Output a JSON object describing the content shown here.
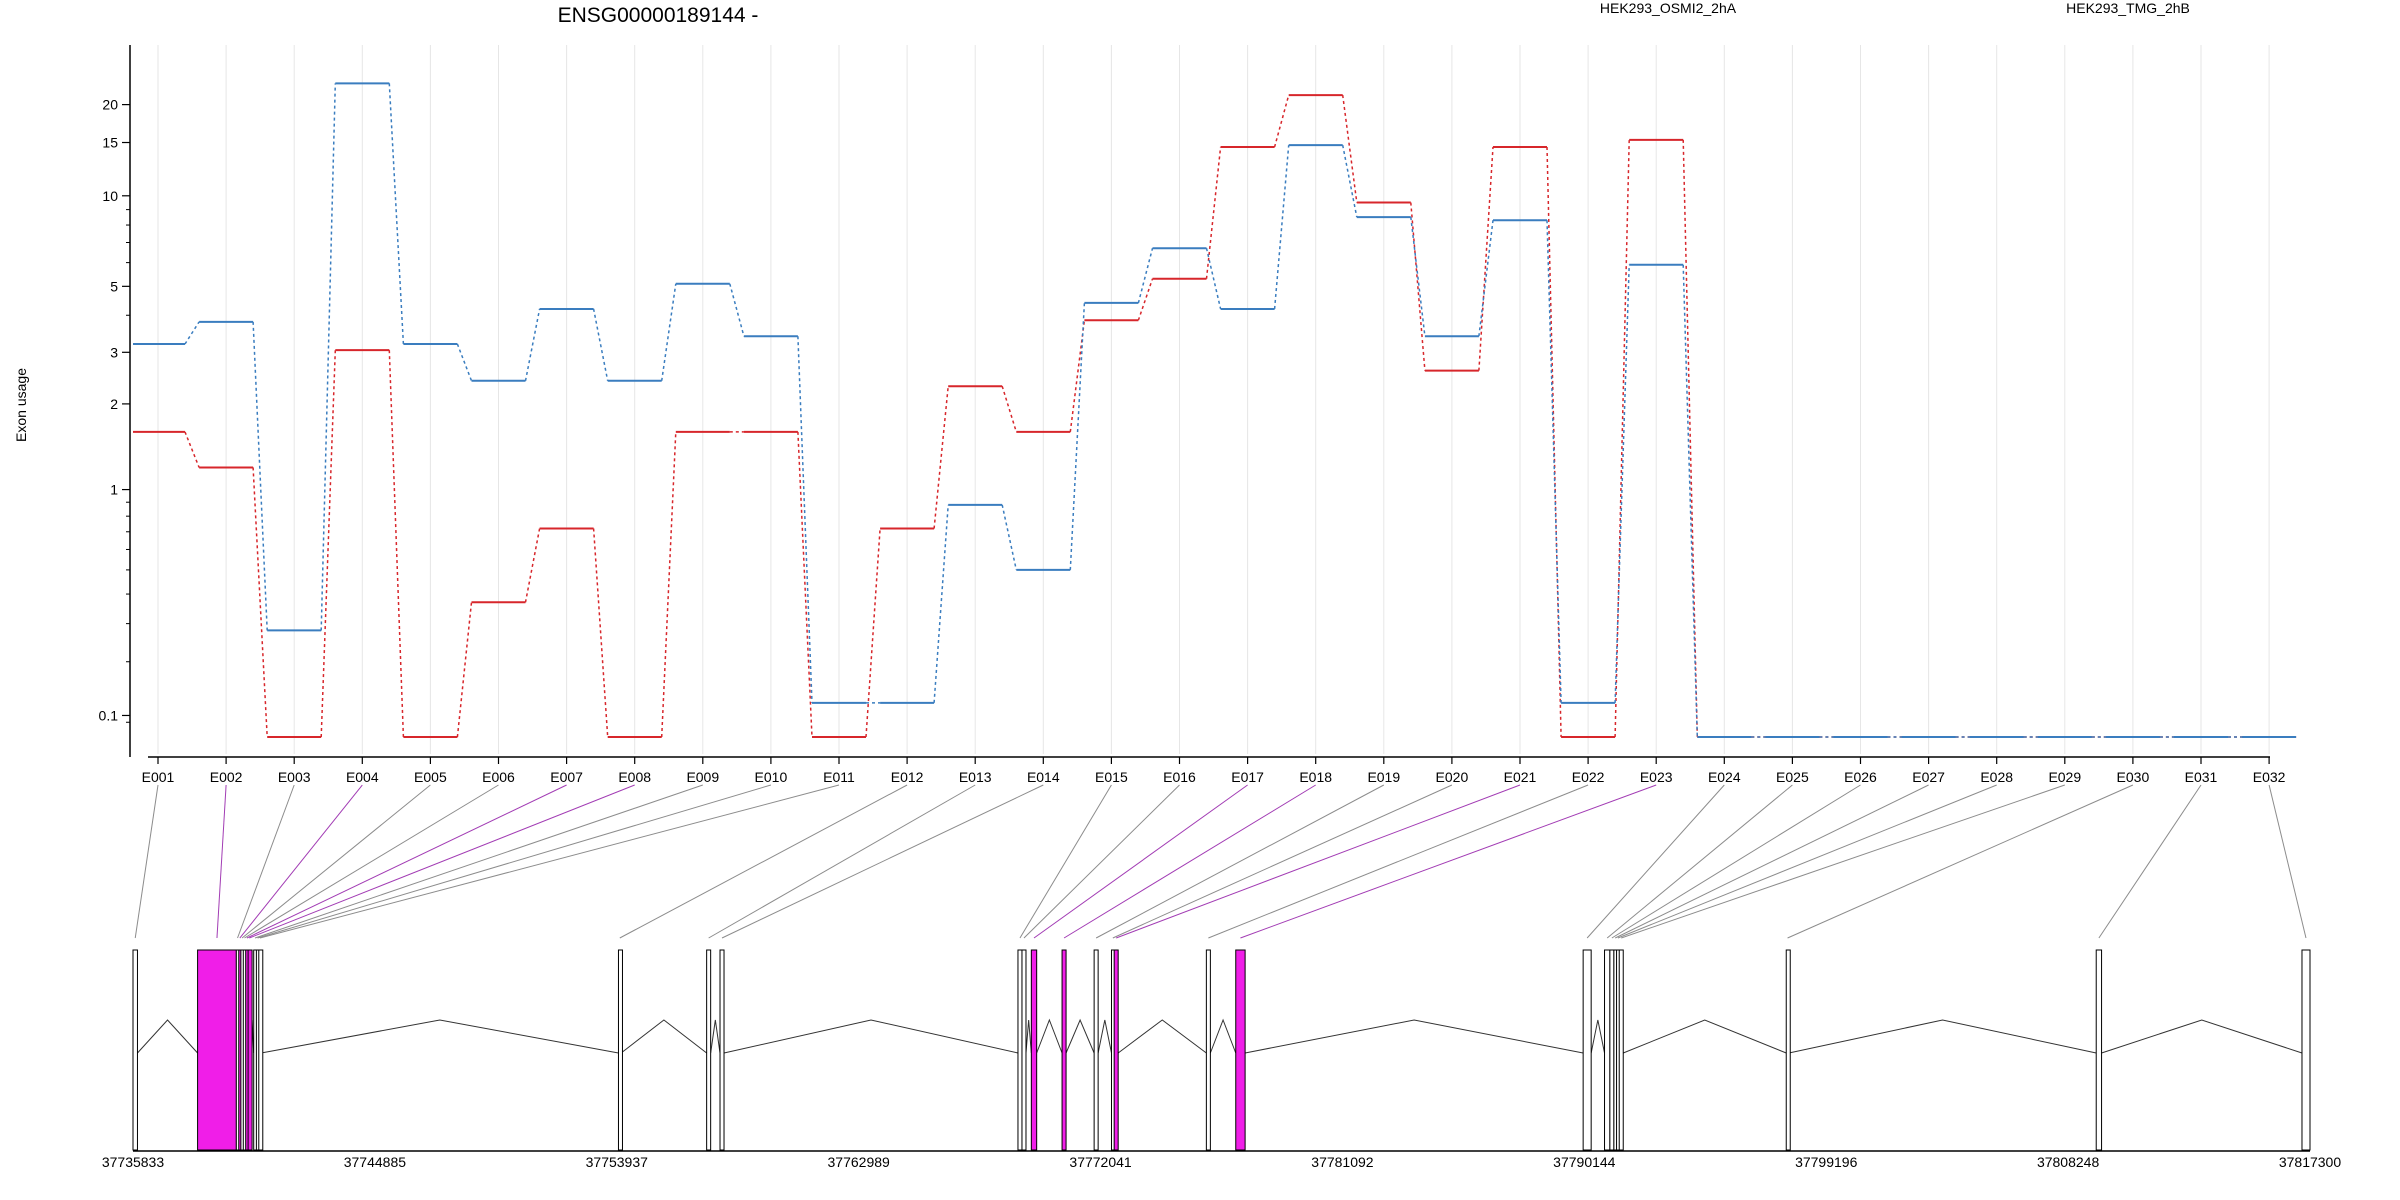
{
  "chart_data": {
    "type": "line",
    "title": "ENSG00000189144 -",
    "ylabel": "Exon usage",
    "y_scale": "log(x+0.1)",
    "ylim": [
      0.07,
      26
    ],
    "y_ticks": [
      0.1,
      1,
      2,
      3,
      5,
      10,
      15,
      20
    ],
    "y_tick_labels": [
      "0.1",
      "1",
      "2",
      "3",
      "5",
      "10",
      "15",
      "20"
    ],
    "grid": "vertical",
    "legend_placement": "top-right",
    "categories": [
      "E001",
      "E002",
      "E003",
      "E004",
      "E005",
      "E006",
      "E007",
      "E008",
      "E009",
      "E010",
      "E011",
      "E012",
      "E013",
      "E014",
      "E015",
      "E016",
      "E017",
      "E018",
      "E019",
      "E020",
      "E021",
      "E022",
      "E023",
      "E024",
      "E025",
      "E026",
      "E027",
      "E028",
      "E029",
      "E030",
      "E031",
      "E032"
    ],
    "series": [
      {
        "name": "HEK293_OSMI2_2hA",
        "color": "#d7262b",
        "values": [
          1.6,
          1.2,
          0.07,
          3.05,
          0.07,
          0.37,
          0.72,
          0.07,
          1.6,
          1.6,
          0.07,
          0.72,
          2.3,
          1.6,
          3.85,
          5.3,
          14.5,
          21.5,
          9.5,
          2.6,
          14.5,
          0.07,
          15.3,
          0.07,
          0.07,
          0.07,
          0.07,
          0.07,
          0.07,
          0.07,
          0.07,
          0.07
        ]
      },
      {
        "name": "HEK293_TMG_2hB",
        "color": "#3a7dbf",
        "values": [
          3.2,
          3.8,
          0.28,
          23.5,
          3.2,
          2.4,
          4.2,
          2.4,
          5.1,
          3.4,
          0.12,
          0.12,
          0.88,
          0.5,
          4.4,
          6.7,
          4.2,
          14.7,
          8.5,
          3.4,
          8.3,
          0.12,
          5.9,
          0.07,
          0.07,
          0.07,
          0.07,
          0.07,
          0.07,
          0.07,
          0.07,
          0.07
        ]
      }
    ],
    "genome": {
      "start": 37735833,
      "end": 37817300,
      "tick_labels": [
        "37735833",
        "37744885",
        "37753937",
        "37762989",
        "37772041",
        "37781092",
        "37790144",
        "37799196",
        "37808248",
        "37817300"
      ],
      "exons": [
        {
          "id": "E001",
          "start": 37735833,
          "end": 37736000,
          "highlight": false
        },
        {
          "id": "E002",
          "start": 37738250,
          "end": 37739700,
          "highlight": true
        },
        {
          "id": "E003",
          "start": 37739700,
          "end": 37739790,
          "highlight": false
        },
        {
          "id": "E004",
          "start": 37739790,
          "end": 37739870,
          "highlight": true
        },
        {
          "id": "E005",
          "start": 37739870,
          "end": 37739960,
          "highlight": false
        },
        {
          "id": "E006",
          "start": 37739960,
          "end": 37740050,
          "highlight": false
        },
        {
          "id": "E007",
          "start": 37740050,
          "end": 37740140,
          "highlight": true
        },
        {
          "id": "E008",
          "start": 37740140,
          "end": 37740230,
          "highlight": true
        },
        {
          "id": "E009",
          "start": 37740350,
          "end": 37740450,
          "highlight": false
        },
        {
          "id": "E010",
          "start": 37740450,
          "end": 37740540,
          "highlight": false
        },
        {
          "id": "E011",
          "start": 37740540,
          "end": 37740630,
          "highlight": false
        },
        {
          "id": "E012",
          "start": 37754000,
          "end": 37754100,
          "highlight": false
        },
        {
          "id": "E013",
          "start": 37757300,
          "end": 37757450,
          "highlight": false
        },
        {
          "id": "E014",
          "start": 37757800,
          "end": 37757950,
          "highlight": false
        },
        {
          "id": "E015",
          "start": 37768950,
          "end": 37769100,
          "highlight": false
        },
        {
          "id": "E016",
          "start": 37769100,
          "end": 37769250,
          "highlight": false
        },
        {
          "id": "E017",
          "start": 37769450,
          "end": 37769650,
          "highlight": true
        },
        {
          "id": "E018",
          "start": 37770600,
          "end": 37770750,
          "highlight": true
        },
        {
          "id": "E019",
          "start": 37771800,
          "end": 37771950,
          "highlight": false
        },
        {
          "id": "E020",
          "start": 37772450,
          "end": 37772550,
          "highlight": false
        },
        {
          "id": "E021",
          "start": 37772550,
          "end": 37772700,
          "highlight": true
        },
        {
          "id": "E022",
          "start": 37776000,
          "end": 37776150,
          "highlight": false
        },
        {
          "id": "E023",
          "start": 37777100,
          "end": 37777450,
          "highlight": true
        },
        {
          "id": "E024",
          "start": 37790100,
          "end": 37790400,
          "highlight": false
        },
        {
          "id": "E025",
          "start": 37790900,
          "end": 37791100,
          "highlight": false
        },
        {
          "id": "E026",
          "start": 37791100,
          "end": 37791250,
          "highlight": false
        },
        {
          "id": "E027",
          "start": 37791250,
          "end": 37791350,
          "highlight": false
        },
        {
          "id": "E028",
          "start": 37791350,
          "end": 37791450,
          "highlight": false
        },
        {
          "id": "E029",
          "start": 37791450,
          "end": 37791600,
          "highlight": false
        },
        {
          "id": "E030",
          "start": 37797700,
          "end": 37797800,
          "highlight": false
        },
        {
          "id": "E031",
          "start": 37809300,
          "end": 37809500,
          "highlight": false
        },
        {
          "id": "E032",
          "start": 37817000,
          "end": 37817300,
          "highlight": false
        }
      ]
    },
    "colors": {
      "highlight_exon": "#f01ee8",
      "highlight_connector": "#a23cb4",
      "connector": "#8c8c8c",
      "grid": "#e6e6e6"
    }
  }
}
